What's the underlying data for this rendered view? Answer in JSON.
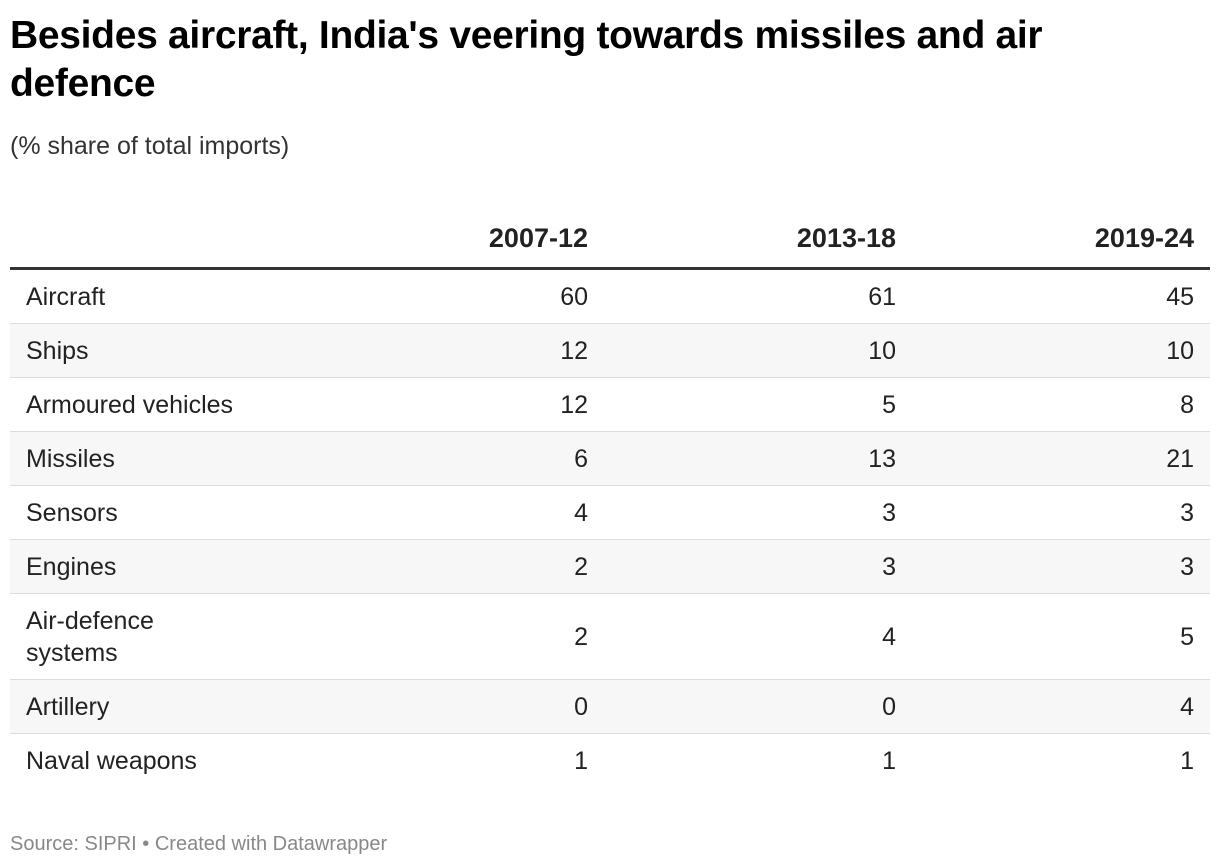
{
  "title": "Besides aircraft, India's veering towards missiles and air defence",
  "subtitle": "(% share of total imports)",
  "footer": {
    "source": "Source: SIPRI",
    "separator": " • ",
    "credit": "Created with Datawrapper"
  },
  "chart_data": {
    "type": "table",
    "columns": [
      "",
      "2007-12",
      "2013-18",
      "2019-24"
    ],
    "rows": [
      {
        "label": "Aircraft",
        "values": [
          "60",
          "61",
          "45"
        ]
      },
      {
        "label": "Ships",
        "values": [
          "12",
          "10",
          "10"
        ]
      },
      {
        "label": "Armoured vehicles",
        "values": [
          "12",
          "5",
          "8"
        ]
      },
      {
        "label": "Missiles",
        "values": [
          "6",
          "13",
          "21"
        ]
      },
      {
        "label": "Sensors",
        "values": [
          "4",
          "3",
          "3"
        ]
      },
      {
        "label": "Engines",
        "values": [
          "2",
          "3",
          "3"
        ]
      },
      {
        "label": "Air-defence systems",
        "values": [
          "2",
          "4",
          "5"
        ]
      },
      {
        "label": "Artillery",
        "values": [
          "0",
          "0",
          "4"
        ]
      },
      {
        "label": "Naval weapons",
        "values": [
          "1",
          "1",
          "1"
        ]
      }
    ]
  }
}
